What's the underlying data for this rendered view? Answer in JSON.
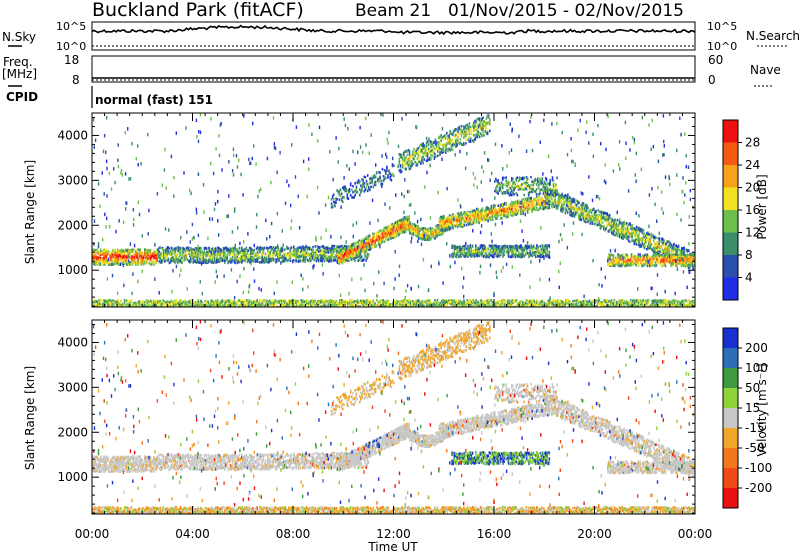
{
  "header": {
    "station": "Buckland Park (fitACF)",
    "beam": "Beam 21",
    "period": "01/Nov/2015 - 02/Nov/2015"
  },
  "noise_panel": {
    "left_label": "N.Sky",
    "right_label": "N.Search",
    "left_ticks": [
      "10^5",
      "10^0"
    ],
    "right_ticks": [
      "10^5",
      "10^0"
    ]
  },
  "freq_panel": {
    "left_label_1": "Freq.",
    "left_label_2": "[MHz]",
    "left_ticks": [
      "18",
      "8"
    ],
    "right_label": "Nave",
    "right_ticks": [
      "60",
      "0"
    ]
  },
  "cpid_panel": {
    "label": "CPID",
    "program": "normal (fast) 151"
  },
  "chart_data": [
    {
      "type": "heatmap",
      "name": "power",
      "ylabel": "Slant Range [km]",
      "yticks": [
        1000,
        2000,
        3000,
        4000
      ],
      "ylim": [
        180,
        4500
      ],
      "xlabel": "Time UT",
      "xticks": [
        "00:00",
        "04:00",
        "08:00",
        "12:00",
        "16:00",
        "20:00",
        "00:00"
      ],
      "xlim_hours": [
        0,
        24
      ],
      "colorbar": {
        "label": "Power [dB]",
        "ticks": [
          "28",
          "24",
          "20",
          "16",
          "12",
          "8",
          "4"
        ],
        "colors": [
          "#ee1111",
          "#f55a10",
          "#f7a21a",
          "#f2e221",
          "#6cbf4a",
          "#3a8e6a",
          "#2a4fb0",
          "#1f2ee5"
        ]
      },
      "features": [
        {
          "t": [
            0.0,
            2.5
          ],
          "range": [
            1200,
            1450
          ],
          "level": "red"
        },
        {
          "t": [
            2.5,
            11.0
          ],
          "range": [
            1150,
            1500
          ],
          "level": "green"
        },
        {
          "t": [
            10.0,
            12.5
          ],
          "range": [
            1200,
            2000
          ],
          "level": "red"
        },
        {
          "t": [
            12.0,
            18.0
          ],
          "range": [
            1900,
            2400
          ],
          "level": "orange"
        },
        {
          "t": [
            13.5,
            16.0
          ],
          "range": [
            3200,
            4400
          ],
          "level": "green"
        },
        {
          "t": [
            18.0,
            23.5
          ],
          "range": [
            1100,
            2600
          ],
          "level": "green"
        },
        {
          "t": [
            0.0,
            24.0
          ],
          "range": [
            180,
            320
          ],
          "level": "green"
        }
      ]
    },
    {
      "type": "heatmap",
      "name": "velocity",
      "ylabel": "Slant Range [km]",
      "yticks": [
        1000,
        2000,
        3000,
        4000
      ],
      "ylim": [
        180,
        4500
      ],
      "xlabel": "Time UT",
      "xticks": [
        "00:00",
        "04:00",
        "08:00",
        "12:00",
        "16:00",
        "20:00",
        "00:00"
      ],
      "xlim_hours": [
        0,
        24
      ],
      "colorbar": {
        "label": "Velocity [m s⁻¹]",
        "ticks": [
          "200",
          "100",
          "50",
          "15",
          "-15",
          "-50",
          "-100",
          "-200"
        ],
        "colors": [
          "#1a2fd0",
          "#2c6fb8",
          "#3f9b3f",
          "#8ed33a",
          "#c8c8c8",
          "#f1a628",
          "#f2781b",
          "#ef4a18",
          "#e81010"
        ]
      },
      "features": [
        {
          "t": [
            0.0,
            24.0
          ],
          "range": [
            1100,
            1500
          ],
          "level": "grey"
        },
        {
          "t": [
            10.0,
            11.5
          ],
          "range": [
            1700,
            2300
          ],
          "level": "blue"
        },
        {
          "t": [
            14.5,
            17.5
          ],
          "range": [
            1200,
            1650
          ],
          "level": "blue/green"
        },
        {
          "t": [
            12.0,
            16.0
          ],
          "range": [
            3200,
            4300
          ],
          "level": "orange"
        }
      ]
    }
  ]
}
